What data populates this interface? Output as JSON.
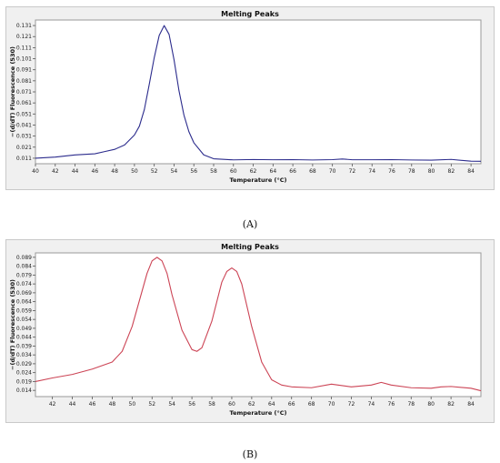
{
  "chart_data": [
    {
      "type": "line",
      "panel_caption": "(A)",
      "title": "Melting Peaks",
      "xlabel": "Temperature (°C)",
      "ylabel": "−(d/dT) Fluorescence (530)",
      "xlim": [
        40,
        85
      ],
      "ylim": [
        0.006,
        0.136
      ],
      "xticks": [
        40,
        42,
        44,
        46,
        48,
        50,
        52,
        54,
        56,
        58,
        60,
        62,
        64,
        66,
        68,
        70,
        72,
        74,
        76,
        78,
        80,
        82,
        84
      ],
      "yticks": [
        0.011,
        0.021,
        0.031,
        0.041,
        0.051,
        0.061,
        0.071,
        0.081,
        0.091,
        0.101,
        0.111,
        0.121,
        0.131
      ],
      "grid": false,
      "series": [
        {
          "color": "#2b2b8c",
          "x": [
            40,
            42,
            44,
            46,
            47,
            48,
            49,
            50,
            50.5,
            51,
            51.5,
            52,
            52.5,
            53,
            53.5,
            54,
            54.5,
            55,
            55.5,
            56,
            57,
            58,
            60,
            62,
            64,
            66,
            68,
            70,
            71,
            72,
            74,
            76,
            78,
            80,
            82,
            84,
            85
          ],
          "y": [
            0.011,
            0.012,
            0.014,
            0.015,
            0.017,
            0.019,
            0.023,
            0.032,
            0.04,
            0.055,
            0.078,
            0.102,
            0.122,
            0.131,
            0.123,
            0.1,
            0.072,
            0.05,
            0.035,
            0.025,
            0.014,
            0.0105,
            0.0095,
            0.0098,
            0.0096,
            0.0097,
            0.0094,
            0.0097,
            0.0103,
            0.0096,
            0.0096,
            0.0097,
            0.0094,
            0.0092,
            0.0099,
            0.0083,
            0.0082
          ]
        }
      ]
    },
    {
      "type": "line",
      "panel_caption": "(B)",
      "title": "Melting Peaks",
      "xlabel": "Temperature (°C)",
      "ylabel": "−(d/dT) Fluorescence (530)",
      "xlim": [
        40.3,
        85
      ],
      "ylim": [
        0.0105,
        0.0915
      ],
      "xticks": [
        42,
        44,
        46,
        48,
        50,
        52,
        54,
        56,
        58,
        60,
        62,
        64,
        66,
        68,
        70,
        72,
        74,
        76,
        78,
        80,
        82,
        84
      ],
      "yticks": [
        0.014,
        0.019,
        0.024,
        0.029,
        0.034,
        0.039,
        0.044,
        0.049,
        0.054,
        0.059,
        0.064,
        0.069,
        0.074,
        0.079,
        0.084,
        0.089
      ],
      "grid": false,
      "series": [
        {
          "color": "#cc4455",
          "x": [
            40.3,
            42,
            44,
            46,
            47,
            48,
            49,
            50,
            51,
            51.5,
            52,
            52.5,
            53,
            53.5,
            54,
            55,
            56,
            56.5,
            57,
            58,
            58.5,
            59,
            59.5,
            60,
            60.5,
            61,
            62,
            63,
            64,
            65,
            66,
            68,
            70,
            72,
            74,
            75,
            76,
            78,
            80,
            81,
            82,
            84,
            85
          ],
          "y": [
            0.019,
            0.021,
            0.023,
            0.026,
            0.028,
            0.03,
            0.036,
            0.05,
            0.07,
            0.08,
            0.087,
            0.089,
            0.087,
            0.08,
            0.068,
            0.048,
            0.037,
            0.036,
            0.038,
            0.053,
            0.064,
            0.075,
            0.081,
            0.083,
            0.081,
            0.074,
            0.05,
            0.03,
            0.02,
            0.017,
            0.016,
            0.0155,
            0.0175,
            0.016,
            0.017,
            0.0185,
            0.017,
            0.0155,
            0.0152,
            0.016,
            0.0162,
            0.0152,
            0.0138
          ]
        }
      ]
    }
  ]
}
